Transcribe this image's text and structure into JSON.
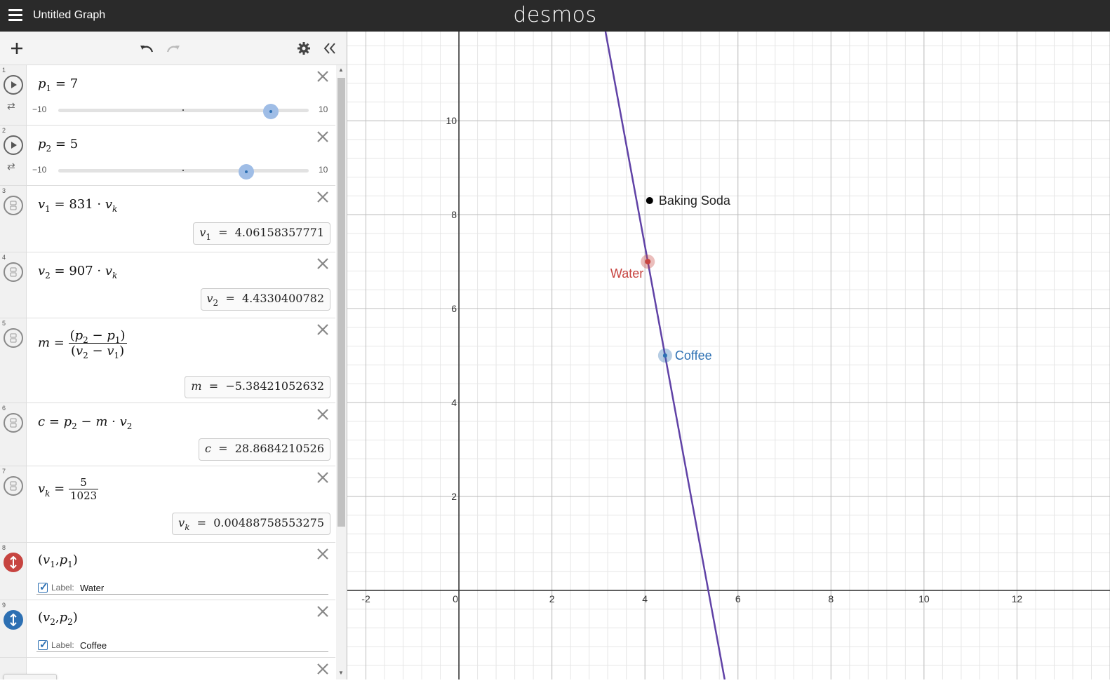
{
  "header": {
    "title": "Untitled Graph",
    "brand": "desmos"
  },
  "toolbar": {
    "add_icon": "plus-icon",
    "undo_icon": "undo-icon",
    "redo_icon": "redo-icon",
    "settings_icon": "gear-icon",
    "collapse_icon": "double-chevron-left-icon"
  },
  "expressions": [
    {
      "index": "1",
      "var": "p",
      "sub": "1",
      "rhs": "= 7",
      "slider": {
        "min": "−10",
        "max": "10",
        "value": 7
      }
    },
    {
      "index": "2",
      "var": "p",
      "sub": "2",
      "rhs": "= 5",
      "slider": {
        "min": "−10",
        "max": "10",
        "value": 5
      }
    },
    {
      "index": "3",
      "result": "4.06158357771"
    },
    {
      "index": "4",
      "result": "4.4330400782"
    },
    {
      "index": "5",
      "result": "−5.38421052632"
    },
    {
      "index": "6",
      "result": "28.8684210526"
    },
    {
      "index": "7",
      "result": "0.00488758553275"
    },
    {
      "index": "8",
      "label_text": "Label:",
      "label_value": "Water"
    },
    {
      "index": "9",
      "label_text": "Label:",
      "label_value": "Coffee"
    }
  ],
  "colors": {
    "line": "#6042a6",
    "water": "#c74440",
    "coffee": "#2d70b3",
    "baking_soda": "#000000"
  },
  "graph": {
    "x_ticks": [
      "-2",
      "0",
      "2",
      "4",
      "6",
      "8",
      "10",
      "12"
    ],
    "y_ticks": [
      "2",
      "4",
      "6",
      "8",
      "10"
    ],
    "x_range": [
      -2.4,
      14.0
    ],
    "y_range": [
      -1.9,
      11.9
    ],
    "points": [
      {
        "label": "Baking Soda",
        "x": 4.1,
        "y": 8.3
      },
      {
        "label": "Water",
        "x": 4.06158357771,
        "y": 7
      },
      {
        "label": "Coffee",
        "x": 4.4330400782,
        "y": 5
      }
    ],
    "line": {
      "slope": -5.38421052632,
      "intercept": 28.8684210526
    }
  }
}
